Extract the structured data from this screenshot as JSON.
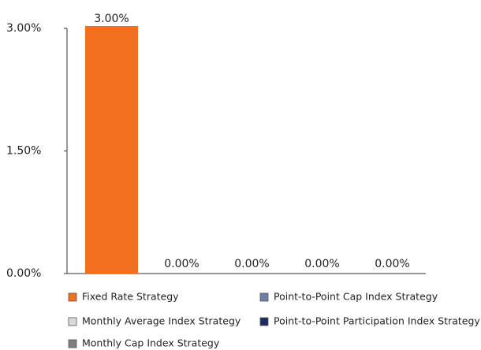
{
  "chart_data": {
    "type": "bar",
    "series": [
      {
        "name": "Fixed Rate Strategy",
        "color": "#f37021",
        "values": [
          3.0
        ],
        "value_labels": [
          "3.00%"
        ]
      },
      {
        "name": "Point-to-Point Participation Index Strategy",
        "color": "#1c2f5e",
        "values": [
          0.0
        ],
        "value_labels": [
          "0.00%"
        ]
      },
      {
        "name": "Point-to-Point Cap Index Strategy",
        "color": "#6d7ea8",
        "values": [
          0.0
        ],
        "value_labels": [
          "0.00%"
        ]
      },
      {
        "name": "Monthly Average Index Strategy",
        "color": "#d9d9d9",
        "values": [
          0.0
        ],
        "value_labels": [
          "0.00%"
        ]
      },
      {
        "name": "Monthly Cap Index Strategy",
        "color": "#7f7f7f",
        "values": [
          0.0
        ],
        "value_labels": [
          "0.00%"
        ]
      }
    ],
    "ylim": [
      0,
      3.0
    ],
    "yticks": [
      {
        "value": 0,
        "label": "0.00%"
      },
      {
        "value": 1.5,
        "label": "1.50%"
      },
      {
        "value": 3.0,
        "label": "3.00%"
      }
    ]
  }
}
